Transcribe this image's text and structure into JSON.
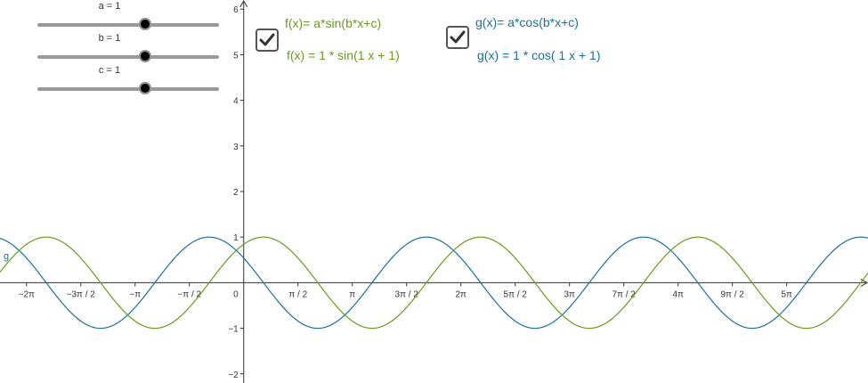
{
  "sliders": [
    {
      "label": "a = 1",
      "value": 1
    },
    {
      "label": "b = 1",
      "value": 1
    },
    {
      "label": "c = 1",
      "value": 1
    }
  ],
  "f_panel": {
    "definition": "f(x)= a*sin(b*x+c)",
    "expression": "f(x) = 1 * sin(1 x + 1)",
    "checked": true,
    "color": "#6b9a1e"
  },
  "g_panel": {
    "definition": "g(x)= a*cos(b*x+c)",
    "expression": "g(x) = 1 * cos( 1 x + 1)",
    "checked": true,
    "color": "#1d6f9a"
  },
  "curve_labels": {
    "g": "g"
  },
  "chart_data": {
    "type": "line",
    "series": [
      {
        "name": "f",
        "function": "sin",
        "a": 1,
        "b": 1,
        "c": 1,
        "color": "#6b9a1e"
      },
      {
        "name": "g",
        "function": "cos",
        "a": 1,
        "b": 1,
        "c": 1,
        "color": "#1d6f9a"
      }
    ],
    "xlim": [
      -7.05,
      18.06
    ],
    "ylim": [
      -2.2,
      6.2
    ],
    "x_ticks": [
      {
        "label": "−2π",
        "value": -6.2832
      },
      {
        "label": "−3π / 2",
        "value": -4.7124
      },
      {
        "label": "−π",
        "value": -3.1416
      },
      {
        "label": "−π / 2",
        "value": -1.5708
      },
      {
        "label": "π / 2",
        "value": 1.5708
      },
      {
        "label": "π",
        "value": 3.1416
      },
      {
        "label": "3π / 2",
        "value": 4.7124
      },
      {
        "label": "2π",
        "value": 6.2832
      },
      {
        "label": "5π / 2",
        "value": 7.854
      },
      {
        "label": "3π",
        "value": 9.4248
      },
      {
        "label": "7π / 2",
        "value": 10.9956
      },
      {
        "label": "4π",
        "value": 12.5664
      },
      {
        "label": "9π / 2",
        "value": 14.1372
      },
      {
        "label": "5π",
        "value": 15.708
      }
    ],
    "y_ticks": [
      {
        "label": "6",
        "value": 6
      },
      {
        "label": "5",
        "value": 5
      },
      {
        "label": "4",
        "value": 4
      },
      {
        "label": "3",
        "value": 3
      },
      {
        "label": "2",
        "value": 2
      },
      {
        "label": "1",
        "value": 1
      },
      {
        "label": "−1",
        "value": -1
      },
      {
        "label": "−2",
        "value": -2
      }
    ],
    "origin_label": "0",
    "grid": false
  }
}
